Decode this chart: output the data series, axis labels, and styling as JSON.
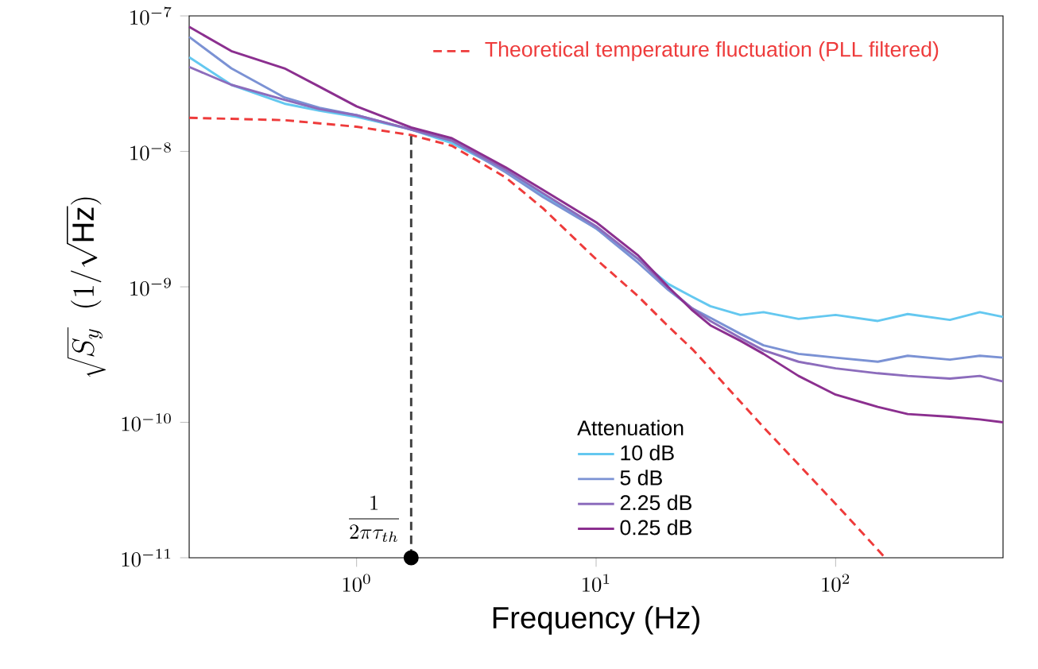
{
  "chart_data": {
    "type": "line",
    "xlabel": "Frequency (Hz)",
    "ylabel": "\\sqrt{S_y}\\;\\;(1/\\sqrt{\\mathrm{Hz}})",
    "log": "xy",
    "xlim": [
      0.2,
      500
    ],
    "ylim": [
      1e-11,
      1e-07
    ],
    "xticks": [
      {
        "value": 1,
        "label": "10^{0}"
      },
      {
        "value": 10,
        "label": "10^{1}"
      },
      {
        "value": 100,
        "label": "10^{2}"
      }
    ],
    "yticks": [
      {
        "value": 1e-11,
        "label": "10^{-11}"
      },
      {
        "value": 1e-10,
        "label": "10^{-10}"
      },
      {
        "value": 1e-09,
        "label": "10^{-9}"
      },
      {
        "value": 1e-08,
        "label": "10^{-8}"
      },
      {
        "value": 1e-07,
        "label": "10^{-7}"
      }
    ],
    "legend": "bottom",
    "legend_title": "Attenuation",
    "marker": "none",
    "annotations": [
      "\\frac{1}{2\\pi\\tau_{th}}"
    ],
    "series": [
      {
        "name": "10 dB",
        "color": "#64c8f0",
        "x": [
          0.2,
          0.3,
          0.5,
          0.7,
          1.0,
          1.69,
          2.5,
          4.2,
          6,
          10,
          15,
          20,
          25,
          30,
          40,
          50,
          70,
          100,
          150,
          200,
          300,
          400,
          500
        ],
        "values": [
          4.95e-08,
          3.1e-08,
          2.25e-08,
          2e-08,
          1.8e-08,
          1.45e-08,
          1.15e-08,
          7.2e-09,
          4.8e-09,
          2.7e-09,
          1.6e-09,
          1.05e-09,
          8.5e-10,
          7.2e-10,
          6.2e-10,
          6.5e-10,
          5.8e-10,
          6.2e-10,
          5.6e-10,
          6.3e-10,
          5.7e-10,
          6.5e-10,
          6e-10
        ]
      },
      {
        "name": "5 dB",
        "color": "#7b92d4",
        "x": [
          0.2,
          0.3,
          0.5,
          0.7,
          1.0,
          1.69,
          2.5,
          4.2,
          6,
          10,
          15,
          20,
          25,
          30,
          40,
          50,
          70,
          100,
          150,
          200,
          300,
          400,
          500
        ],
        "values": [
          7e-08,
          4.1e-08,
          2.5e-08,
          2.1e-08,
          1.85e-08,
          1.45e-08,
          1.2e-08,
          7e-09,
          4.6e-09,
          2.7e-09,
          1.5e-09,
          9.5e-10,
          7e-10,
          5.9e-10,
          4.5e-10,
          3.7e-10,
          3.2e-10,
          3e-10,
          2.8e-10,
          3.1e-10,
          2.9e-10,
          3.1e-10,
          3e-10
        ]
      },
      {
        "name": "2.25 dB",
        "color": "#8c6cbc",
        "x": [
          0.2,
          0.3,
          0.5,
          0.7,
          1.0,
          1.69,
          2.5,
          4.2,
          6,
          10,
          15,
          20,
          25,
          30,
          40,
          50,
          70,
          100,
          150,
          200,
          300,
          400,
          500
        ],
        "values": [
          4.2e-08,
          3.1e-08,
          2.4e-08,
          2.05e-08,
          1.85e-08,
          1.45e-08,
          1.2e-08,
          7.3e-09,
          4.9e-09,
          2.8e-09,
          1.6e-09,
          9.8e-10,
          7e-10,
          5.6e-10,
          4.2e-10,
          3.4e-10,
          2.8e-10,
          2.5e-10,
          2.3e-10,
          2.2e-10,
          2.1e-10,
          2.2e-10,
          2e-10
        ]
      },
      {
        "name": "0.25 dB",
        "color": "#8b2f8f",
        "x": [
          0.2,
          0.3,
          0.5,
          0.7,
          1.0,
          1.69,
          2.5,
          4.2,
          6,
          10,
          15,
          20,
          25,
          30,
          40,
          50,
          70,
          100,
          150,
          200,
          300,
          400,
          500
        ],
        "values": [
          8.3e-08,
          5.5e-08,
          4.1e-08,
          3e-08,
          2.15e-08,
          1.5e-08,
          1.25e-08,
          7.6e-09,
          5.2e-09,
          3e-09,
          1.7e-09,
          1e-09,
          6.8e-10,
          5.2e-10,
          4e-10,
          3.2e-10,
          2.2e-10,
          1.6e-10,
          1.3e-10,
          1.15e-10,
          1.1e-10,
          1.05e-10,
          1e-10
        ]
      },
      {
        "name": "Theoretical temperature fluctuation  (PLL filtered)",
        "color": "#ee3b3b",
        "line_style": "dashed",
        "x": [
          0.2,
          0.5,
          1.0,
          1.69,
          2.5,
          4.2,
          6,
          10,
          15,
          19.6,
          25.5,
          50,
          100,
          161
        ],
        "values": [
          1.77e-08,
          1.7e-08,
          1.52e-08,
          1.32e-08,
          1.1e-08,
          6.4e-09,
          3.8e-09,
          1.6e-09,
          8.5e-10,
          5.3e-10,
          3.4e-10,
          9.2e-11,
          2.5e-11,
          1e-11
        ]
      },
      {
        "color": "#404040",
        "line_style": "dashed",
        "x": [
          1.69,
          1.69
        ],
        "values": [
          1e-11,
          1.32e-08
        ]
      },
      {
        "color": "#000000",
        "marker": "circle",
        "x": [
          1.69
        ],
        "values": [
          1e-11
        ]
      }
    ]
  }
}
